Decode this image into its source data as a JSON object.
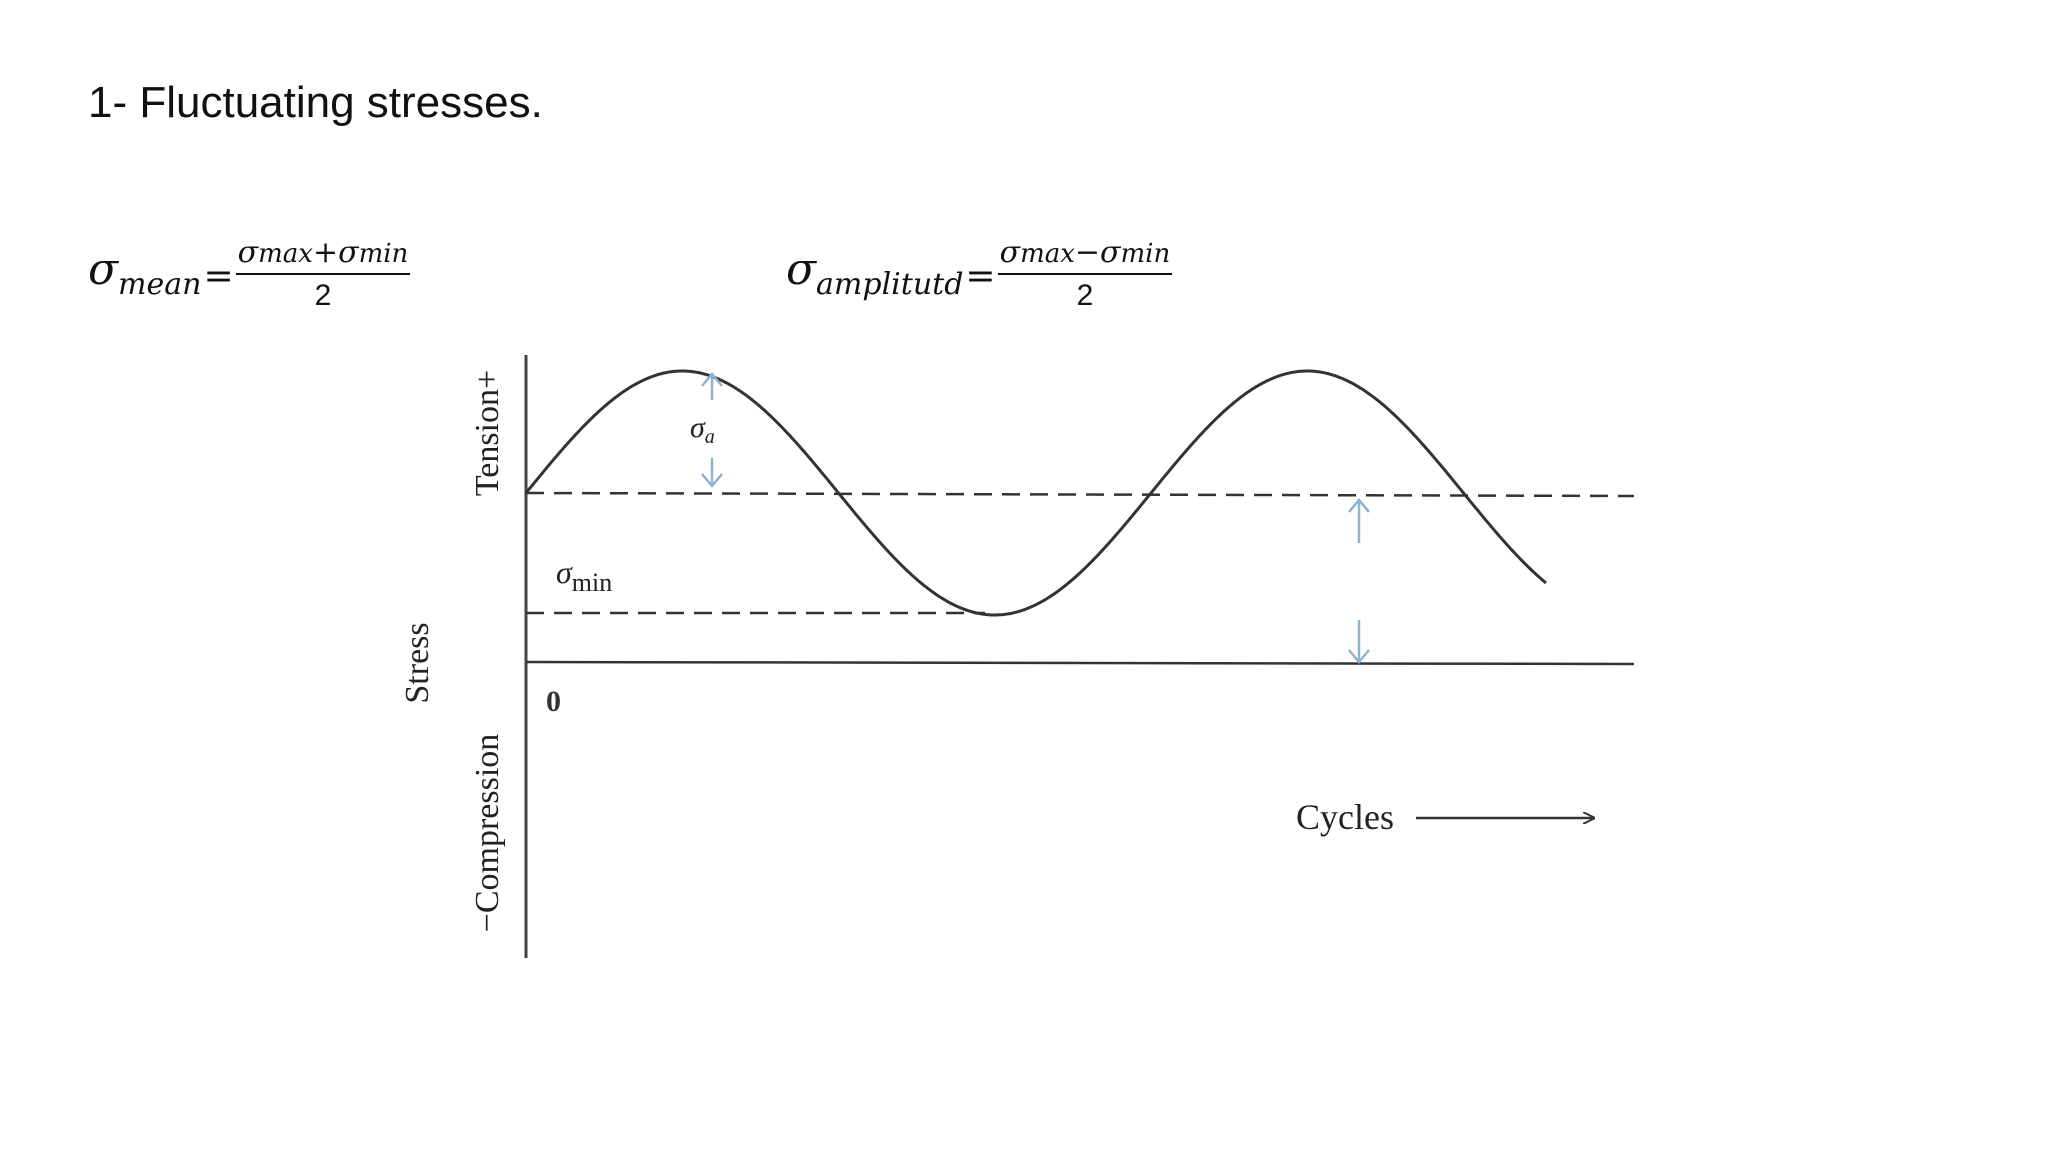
{
  "slide": {
    "title": "1- Fluctuating stresses."
  },
  "formulas": {
    "mean": {
      "symbol": "σ",
      "subscript": "mean",
      "equals": "=",
      "numerator_a": "σ",
      "numerator_a_sub": "max",
      "operator": "+",
      "numerator_b": "σ",
      "numerator_b_sub": "min",
      "denominator": "2"
    },
    "amplitude": {
      "symbol": "σ",
      "subscript": "amplitutd",
      "equals": "=",
      "numerator_a": "σ",
      "numerator_a_sub": "max",
      "operator": "−",
      "numerator_b": "σ",
      "numerator_b_sub": "min",
      "denominator": "2"
    }
  },
  "diagram": {
    "y_axis_label": "Stress",
    "y_positive_label": "Tension+",
    "y_negative_label": "−Compression",
    "origin_label": "0",
    "x_axis_label": "Cycles",
    "sigma_a_symbol": "σ",
    "sigma_a_sub": "a",
    "sigma_min_symbol": "σ",
    "sigma_min_sub": "min",
    "colors": {
      "curve": "#333333",
      "arrow": "#8fb3cf",
      "axis": "#444444"
    }
  }
}
